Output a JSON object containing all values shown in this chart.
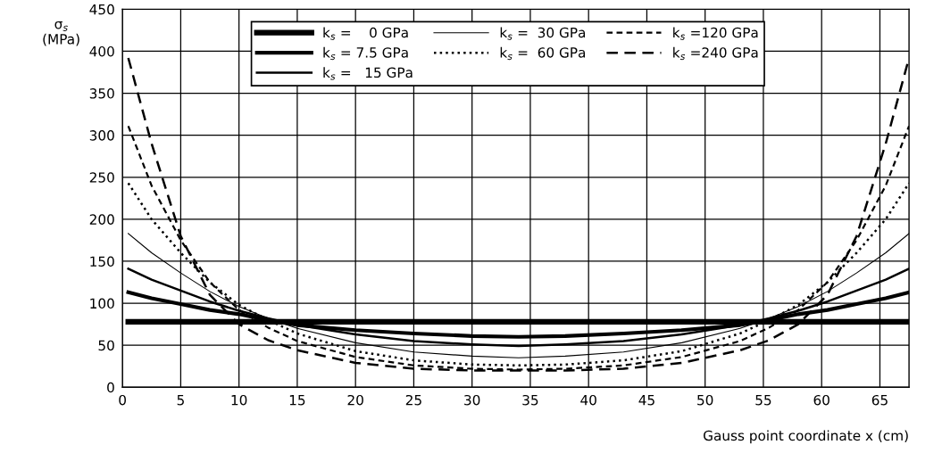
{
  "chart_data": {
    "type": "line",
    "xlabel": "Gauss point coordinate x (cm)",
    "ylabel": "σ$_{s}$\n(MPa)",
    "x": [
      0.5,
      2.5,
      5,
      7.5,
      10,
      12.5,
      15,
      20,
      25,
      30,
      34,
      38,
      43,
      48,
      53,
      55.5,
      58,
      60.5,
      63,
      65.5,
      67.5
    ],
    "series": [
      {
        "name": "k$_{s}$ =    0 GPa",
        "color": "#000000",
        "line_style": "solid",
        "values": [
          78,
          78,
          78,
          78,
          78,
          78,
          78,
          78,
          78,
          78,
          78,
          78,
          78,
          78,
          78,
          78,
          78,
          78,
          78,
          78,
          78
        ]
      },
      {
        "name": "k$_{s}$ = 7.5 GPa",
        "color": "#000000",
        "line_style": "solid",
        "values": [
          113,
          106,
          99,
          92,
          87,
          80,
          74,
          68,
          64,
          61,
          60,
          61,
          64,
          68,
          74,
          80,
          87,
          92,
          99,
          106,
          113
        ]
      },
      {
        "name": "k$_{s}$ =   15 GPa",
        "color": "#000000",
        "line_style": "solid",
        "values": [
          141,
          128,
          115,
          102,
          91,
          82,
          74,
          63,
          55,
          51,
          49,
          51,
          55,
          63,
          74,
          82,
          91,
          102,
          115,
          128,
          141
        ]
      },
      {
        "name": "k$_{s}$ =  30 GPa",
        "color": "#000000",
        "line_style": "solid",
        "values": [
          183,
          160,
          136,
          114,
          96,
          82,
          70,
          53,
          42,
          37,
          35,
          37,
          42,
          53,
          70,
          82,
          96,
          114,
          136,
          160,
          183
        ]
      },
      {
        "name": "k$_{s}$ =  60 GPa",
        "color": "#000000",
        "line_style": "dotted",
        "values": [
          243,
          200,
          160,
          125,
          98,
          80,
          64,
          43,
          32,
          27,
          26,
          27,
          32,
          43,
          64,
          80,
          98,
          125,
          160,
          200,
          243
        ]
      },
      {
        "name": "k$_{s}$ =120 GPa",
        "color": "#000000",
        "line_style": "dashed",
        "values": [
          311,
          240,
          175,
          125,
          92,
          71,
          55,
          36,
          26,
          22,
          21,
          22,
          26,
          36,
          55,
          71,
          92,
          125,
          175,
          240,
          311
        ]
      },
      {
        "name": "k$_{s}$ =240 GPa",
        "color": "#000000",
        "line_style": "dashed",
        "values": [
          392,
          290,
          180,
          110,
          75,
          56,
          44,
          29,
          22,
          20,
          20,
          20,
          22,
          29,
          44,
          56,
          75,
          110,
          180,
          290,
          392
        ]
      }
    ],
    "xlim": [
      0,
      67.5
    ],
    "xticks": [
      0,
      5,
      10,
      15,
      20,
      25,
      30,
      35,
      40,
      45,
      50,
      55,
      60,
      65
    ],
    "ylim": [
      0,
      450
    ],
    "yticks": [
      0,
      50,
      100,
      150,
      200,
      250,
      300,
      350,
      400,
      450
    ],
    "grid": true,
    "legend": "top",
    "marker": "none"
  }
}
